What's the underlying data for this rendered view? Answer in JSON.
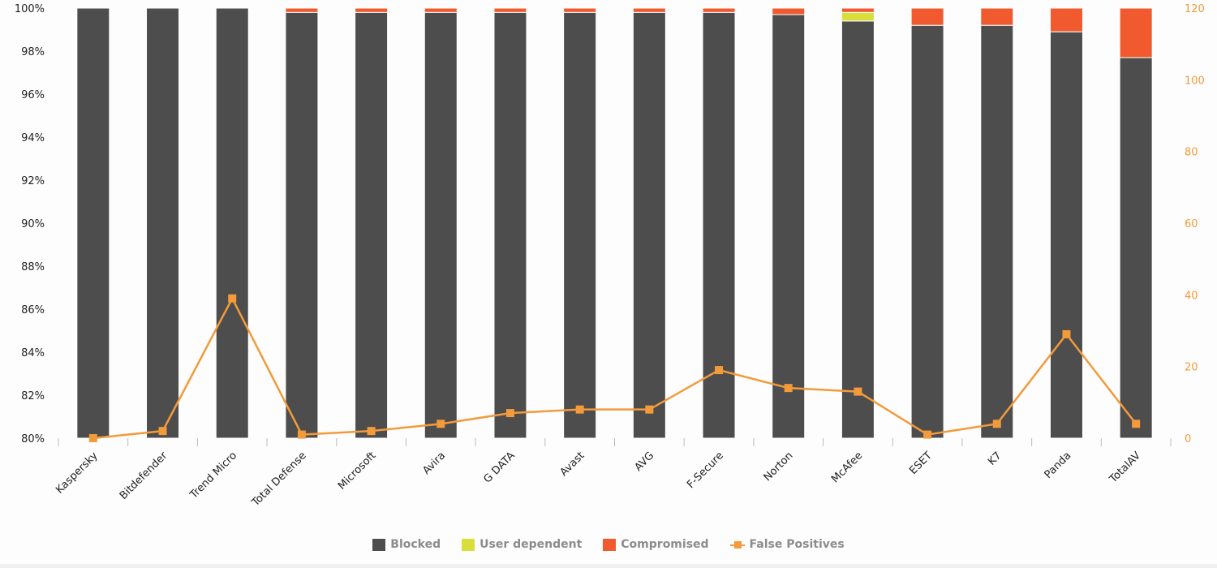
{
  "chart_data": {
    "type": "bar",
    "stacked": true,
    "title": "",
    "xlabel": "",
    "ylabel": "",
    "categories": [
      "Kaspersky",
      "Bitdefender",
      "Trend Micro",
      "Total Defense",
      "Microsoft",
      "Avira",
      "G DATA",
      "Avast",
      "AVG",
      "F-Secure",
      "Norton",
      "McAfee",
      "ESET",
      "K7",
      "Panda",
      "TotalAV"
    ],
    "series": [
      {
        "name": "Blocked",
        "type": "bar",
        "axis": "left",
        "color": "#4d4d4d",
        "values": [
          100,
          100,
          100,
          99.8,
          99.8,
          99.8,
          99.8,
          99.8,
          99.8,
          99.8,
          99.7,
          99.4,
          99.2,
          99.2,
          98.9,
          97.7
        ]
      },
      {
        "name": "User dependent",
        "type": "bar",
        "axis": "left",
        "color": "#d9df3a",
        "values": [
          0,
          0,
          0,
          0,
          0,
          0,
          0,
          0,
          0,
          0,
          0,
          0.4,
          0,
          0,
          0,
          0
        ]
      },
      {
        "name": "Compromised",
        "type": "bar",
        "axis": "left",
        "color": "#f05a2e",
        "values": [
          0,
          0,
          0,
          0.2,
          0.2,
          0.2,
          0.2,
          0.2,
          0.2,
          0.2,
          0.3,
          0.2,
          0.8,
          0.8,
          1.1,
          2.3
        ]
      },
      {
        "name": "False Positives",
        "type": "line",
        "axis": "right",
        "color": "#f39a3b",
        "values": [
          0,
          2,
          39,
          1,
          2,
          4,
          7,
          8,
          8,
          19,
          14,
          13,
          1,
          4,
          29,
          4
        ]
      }
    ],
    "ylim": [
      80,
      100
    ],
    "y_ticks": [
      "80%",
      "82%",
      "84%",
      "86%",
      "88%",
      "90%",
      "92%",
      "94%",
      "96%",
      "98%",
      "100%"
    ],
    "y2lim": [
      0,
      120
    ],
    "y2_ticks": [
      "0",
      "20",
      "40",
      "60",
      "80",
      "100",
      "120"
    ],
    "grid": false,
    "legend_position": "bottom"
  },
  "legend": {
    "items": [
      {
        "label": "Blocked",
        "color": "#4d4d4d",
        "kind": "square"
      },
      {
        "label": "User dependent",
        "color": "#d9df3a",
        "kind": "square"
      },
      {
        "label": "Compromised",
        "color": "#f05a2e",
        "kind": "square"
      },
      {
        "label": "False Positives",
        "color": "#f39a3b",
        "kind": "line-marker"
      }
    ]
  },
  "colors": {
    "left_axis_text": "#222222",
    "right_axis_text": "#f39a3b",
    "tick_marks": "#bbbbbb",
    "background": "#fdfdfd"
  }
}
